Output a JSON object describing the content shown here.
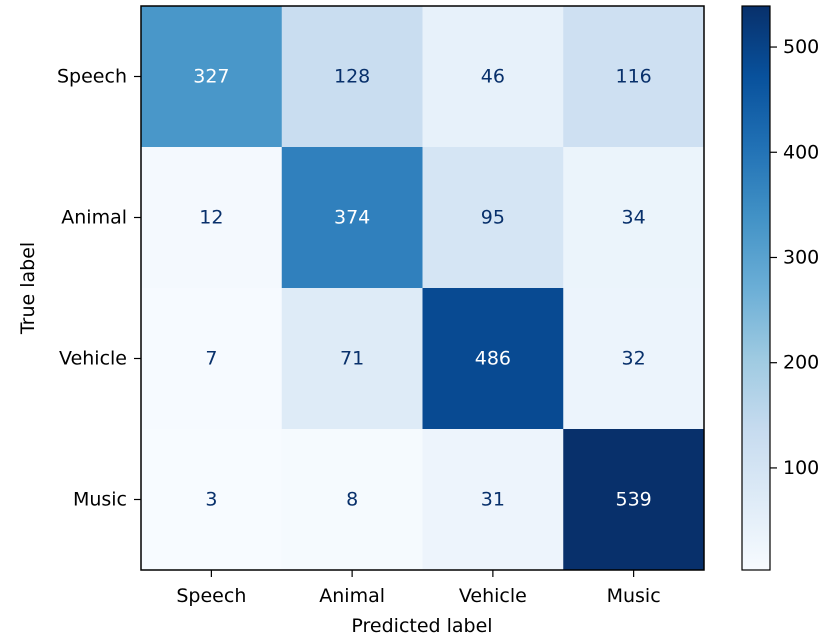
{
  "chart_data": {
    "type": "heatmap",
    "title": "",
    "xlabel": "Predicted label",
    "ylabel": "True label",
    "x_categories": [
      "Speech",
      "Animal",
      "Vehicle",
      "Music"
    ],
    "y_categories": [
      "Speech",
      "Animal",
      "Vehicle",
      "Music"
    ],
    "matrix": [
      [
        327,
        128,
        46,
        116
      ],
      [
        12,
        374,
        95,
        34
      ],
      [
        7,
        71,
        486,
        32
      ],
      [
        3,
        8,
        31,
        539
      ]
    ],
    "colormap": "Blues",
    "value_range": [
      3,
      539
    ],
    "colorbar": {
      "ticks": [
        100,
        200,
        300,
        400,
        500
      ],
      "tick_labels": [
        "100",
        "200",
        "300",
        "400",
        "500"
      ]
    },
    "text_colors": {
      "dark_cell": "#ffffff",
      "light_cell": "#08306b"
    }
  }
}
